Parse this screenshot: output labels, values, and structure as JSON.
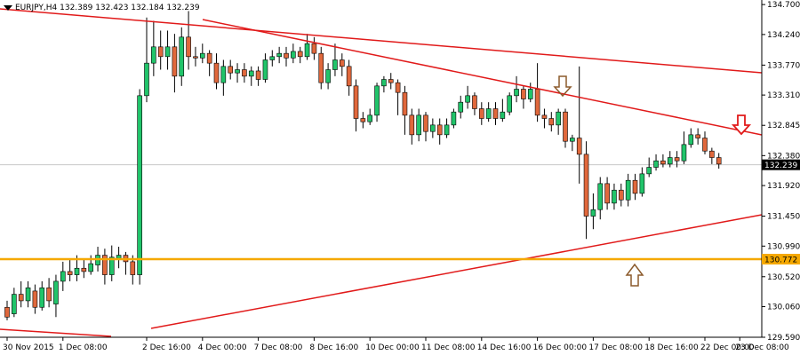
{
  "header": {
    "symbol_line": "EURJPY,H4  132.389 132.423 132.184 132.239"
  },
  "colors": {
    "bull": "#21c46a",
    "bear": "#e0683c",
    "wick": "#000000",
    "trendline": "#e11a1a",
    "support": "#f5a800",
    "price_line": "#c8c8c8",
    "arrow_outline": "#8b5a2b",
    "arrow_red": "#e11a1a"
  },
  "chart_data": {
    "type": "candlestick",
    "symbol": "EURJPY",
    "timeframe": "H4",
    "ohlc_header": {
      "open": 132.389,
      "high": 132.423,
      "low": 132.184,
      "close": 132.239
    },
    "ylim": [
      129.59,
      134.77
    ],
    "y_ticks": [
      "134.700",
      "134.240",
      "133.770",
      "133.310",
      "132.845",
      "132.380",
      "131.920",
      "131.450",
      "130.990",
      "130.520",
      "130.060",
      "129.590"
    ],
    "x_ticks": [
      "30 Nov 2015",
      "1 Dec 08:00",
      "2 Dec 16:00",
      "4 Dec 00:00",
      "7 Dec 08:00",
      "8 Dec 16:00",
      "10 Dec 00:00",
      "11 Dec 08:00",
      "14 Dec 16:00",
      "16 Dec 00:00",
      "17 Dec 08:00",
      "18 Dec 16:00",
      "22 Dec 00:00",
      "23 Dec 08:00"
    ],
    "current_price": "132.239",
    "support_level": {
      "value": 130.772,
      "label": "130.772"
    },
    "candles": [
      [
        130.05,
        129.9,
        130.15,
        129.85
      ],
      [
        129.95,
        130.25,
        130.35,
        129.9
      ],
      [
        130.25,
        130.15,
        130.45,
        130.05
      ],
      [
        130.15,
        130.35,
        130.45,
        130.05
      ],
      [
        130.3,
        130.05,
        130.4,
        129.95
      ],
      [
        130.05,
        130.35,
        130.45,
        130.0
      ],
      [
        130.35,
        130.15,
        130.5,
        130.05
      ],
      [
        130.1,
        130.45,
        130.55,
        129.9
      ],
      [
        130.45,
        130.6,
        130.75,
        130.3
      ],
      [
        130.6,
        130.55,
        130.8,
        130.45
      ],
      [
        130.55,
        130.65,
        130.85,
        130.45
      ],
      [
        130.65,
        130.6,
        130.8,
        130.5
      ],
      [
        130.6,
        130.72,
        130.85,
        130.55
      ],
      [
        130.7,
        130.85,
        130.98,
        130.6
      ],
      [
        130.85,
        130.55,
        130.95,
        130.4
      ],
      [
        130.55,
        130.82,
        131.0,
        130.45
      ],
      [
        130.8,
        130.85,
        130.98,
        130.65
      ],
      [
        130.85,
        130.75,
        130.9,
        130.55
      ],
      [
        130.75,
        130.55,
        130.85,
        130.4
      ],
      [
        130.55,
        133.3,
        133.4,
        130.4
      ],
      [
        133.3,
        133.8,
        134.5,
        133.2
      ],
      [
        133.8,
        134.05,
        134.45,
        133.6
      ],
      [
        134.05,
        133.9,
        134.3,
        133.7
      ],
      [
        133.9,
        134.05,
        134.3,
        133.7
      ],
      [
        134.05,
        133.6,
        134.25,
        133.35
      ],
      [
        133.6,
        134.2,
        134.35,
        133.45
      ],
      [
        134.2,
        133.9,
        134.6,
        133.7
      ],
      [
        133.9,
        133.88,
        134.05,
        133.75
      ],
      [
        133.88,
        133.95,
        134.1,
        133.8
      ],
      [
        133.95,
        133.8,
        134.0,
        133.6
      ],
      [
        133.8,
        133.5,
        133.95,
        133.4
      ],
      [
        133.5,
        133.75,
        133.85,
        133.3
      ],
      [
        133.75,
        133.65,
        133.85,
        133.55
      ],
      [
        133.65,
        133.7,
        133.8,
        133.5
      ],
      [
        133.7,
        133.6,
        133.8,
        133.5
      ],
      [
        133.6,
        133.68,
        133.75,
        133.45
      ],
      [
        133.68,
        133.55,
        133.75,
        133.45
      ],
      [
        133.55,
        133.85,
        133.95,
        133.5
      ],
      [
        133.85,
        133.9,
        134.0,
        133.75
      ],
      [
        133.9,
        133.95,
        134.05,
        133.8
      ],
      [
        133.95,
        133.88,
        134.05,
        133.75
      ],
      [
        133.88,
        133.98,
        134.1,
        133.8
      ],
      [
        133.98,
        133.9,
        134.05,
        133.8
      ],
      [
        133.9,
        134.1,
        134.25,
        133.85
      ],
      [
        134.1,
        133.95,
        134.2,
        133.85
      ],
      [
        133.95,
        133.5,
        134.05,
        133.4
      ],
      [
        133.5,
        133.7,
        133.8,
        133.4
      ],
      [
        133.7,
        133.85,
        134.1,
        133.6
      ],
      [
        133.85,
        133.75,
        133.95,
        133.6
      ],
      [
        133.75,
        133.45,
        133.85,
        133.3
      ],
      [
        133.45,
        132.95,
        133.55,
        132.75
      ],
      [
        132.95,
        132.9,
        133.05,
        132.8
      ],
      [
        132.9,
        133.0,
        133.1,
        132.85
      ],
      [
        133.0,
        133.45,
        133.5,
        132.9
      ],
      [
        133.45,
        133.55,
        133.6,
        133.35
      ],
      [
        133.55,
        133.5,
        133.65,
        133.4
      ],
      [
        133.5,
        133.35,
        133.55,
        133.0
      ],
      [
        133.35,
        133.0,
        133.45,
        132.7
      ],
      [
        133.0,
        132.7,
        133.1,
        132.55
      ],
      [
        132.7,
        133.0,
        133.1,
        132.6
      ],
      [
        133.0,
        132.75,
        133.05,
        132.6
      ],
      [
        132.75,
        132.85,
        132.95,
        132.65
      ],
      [
        132.85,
        132.7,
        132.95,
        132.55
      ],
      [
        132.7,
        132.85,
        132.95,
        132.65
      ],
      [
        132.85,
        133.05,
        133.1,
        132.8
      ],
      [
        133.05,
        133.2,
        133.3,
        132.95
      ],
      [
        133.2,
        133.3,
        133.45,
        133.1
      ],
      [
        133.3,
        133.1,
        133.35,
        133.0
      ],
      [
        133.1,
        132.95,
        133.2,
        132.85
      ],
      [
        132.95,
        133.1,
        133.2,
        132.9
      ],
      [
        133.1,
        132.95,
        133.2,
        132.85
      ],
      [
        132.95,
        133.05,
        133.25,
        132.9
      ],
      [
        133.05,
        133.3,
        133.35,
        133.0
      ],
      [
        133.3,
        133.4,
        133.6,
        133.2
      ],
      [
        133.4,
        133.25,
        133.45,
        133.1
      ],
      [
        133.25,
        133.4,
        133.5,
        133.2
      ],
      [
        133.4,
        133.0,
        133.8,
        132.9
      ],
      [
        133.0,
        132.95,
        133.1,
        132.8
      ],
      [
        132.95,
        132.85,
        133.05,
        132.75
      ],
      [
        132.85,
        133.05,
        133.1,
        132.7
      ],
      [
        133.05,
        132.6,
        133.1,
        132.5
      ],
      [
        132.6,
        132.65,
        132.7,
        132.45
      ],
      [
        132.65,
        132.4,
        133.75,
        131.95
      ],
      [
        132.4,
        131.45,
        132.6,
        131.1
      ],
      [
        131.45,
        131.55,
        131.8,
        131.25
      ],
      [
        131.55,
        131.95,
        132.05,
        131.4
      ],
      [
        131.95,
        131.65,
        132.05,
        131.55
      ],
      [
        131.65,
        131.85,
        131.95,
        131.55
      ],
      [
        131.85,
        131.7,
        131.95,
        131.6
      ],
      [
        131.7,
        132.0,
        132.1,
        131.6
      ],
      [
        132.0,
        131.8,
        132.1,
        131.7
      ],
      [
        131.8,
        132.1,
        132.2,
        131.75
      ],
      [
        132.1,
        132.2,
        132.35,
        132.05
      ],
      [
        132.2,
        132.3,
        132.4,
        132.15
      ],
      [
        132.3,
        132.25,
        132.4,
        132.2
      ],
      [
        132.25,
        132.35,
        132.45,
        132.2
      ],
      [
        132.35,
        132.3,
        132.45,
        132.2
      ],
      [
        132.3,
        132.55,
        132.75,
        132.25
      ],
      [
        132.55,
        132.7,
        132.8,
        132.5
      ],
      [
        132.7,
        132.65,
        132.8,
        132.55
      ],
      [
        132.65,
        132.45,
        132.75,
        132.4
      ],
      [
        132.45,
        132.35,
        132.5,
        132.25
      ],
      [
        132.35,
        132.25,
        132.42,
        132.18
      ]
    ]
  }
}
